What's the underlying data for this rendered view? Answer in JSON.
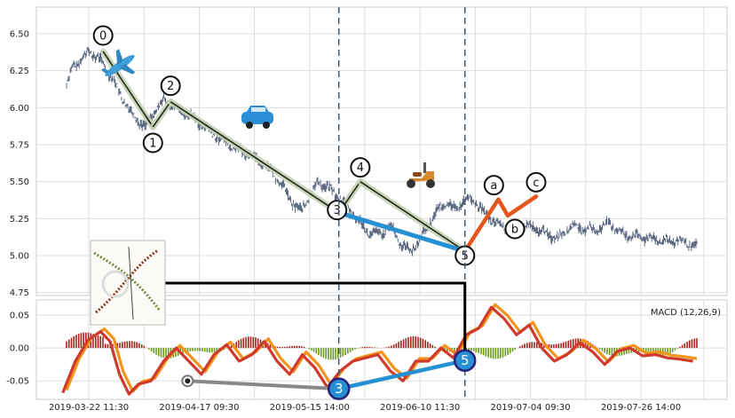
{
  "chart_data": [
    {
      "type": "line",
      "panel": "price",
      "ylim": [
        4.73,
        6.68
      ],
      "x_ticks": [
        "2019-03-22 11:30",
        "2019-04-17 09:30",
        "2019-05-15 14:00",
        "2019-06-10 11:30",
        "2019-07-04 09:30",
        "2019-07-26 14:00"
      ],
      "y_ticks": [
        4.75,
        5.0,
        5.25,
        5.5,
        5.75,
        6.0,
        6.25,
        6.5
      ],
      "y_tick_labels": [
        "4.75",
        "5.00",
        "5.25",
        "5.50",
        "5.75",
        "6.00",
        "6.25",
        "6.50"
      ],
      "grid": true,
      "price_path": [
        [
          0,
          6.15
        ],
        [
          0.01,
          6.28
        ],
        [
          0.02,
          6.31
        ],
        [
          0.035,
          6.38
        ],
        [
          0.05,
          6.34
        ],
        [
          0.07,
          6.22
        ],
        [
          0.09,
          6.05
        ],
        [
          0.105,
          5.95
        ],
        [
          0.125,
          5.87
        ],
        [
          0.14,
          5.98
        ],
        [
          0.155,
          6.05
        ],
        [
          0.17,
          6.0
        ],
        [
          0.19,
          5.96
        ],
        [
          0.21,
          5.9
        ],
        [
          0.23,
          5.83
        ],
        [
          0.25,
          5.77
        ],
        [
          0.27,
          5.72
        ],
        [
          0.29,
          5.68
        ],
        [
          0.31,
          5.63
        ],
        [
          0.33,
          5.55
        ],
        [
          0.345,
          5.45
        ],
        [
          0.36,
          5.35
        ],
        [
          0.372,
          5.3
        ],
        [
          0.385,
          5.4
        ],
        [
          0.4,
          5.5
        ],
        [
          0.415,
          5.46
        ],
        [
          0.44,
          5.36
        ],
        [
          0.46,
          5.25
        ],
        [
          0.48,
          5.15
        ],
        [
          0.5,
          5.15
        ],
        [
          0.515,
          5.2
        ],
        [
          0.53,
          5.08
        ],
        [
          0.545,
          5.03
        ],
        [
          0.56,
          5.1
        ],
        [
          0.575,
          5.22
        ],
        [
          0.59,
          5.31
        ],
        [
          0.6,
          5.36
        ],
        [
          0.615,
          5.31
        ],
        [
          0.63,
          5.37
        ],
        [
          0.645,
          5.38
        ],
        [
          0.66,
          5.3
        ],
        [
          0.68,
          5.22
        ],
        [
          0.7,
          5.18
        ],
        [
          0.72,
          5.2
        ],
        [
          0.74,
          5.19
        ],
        [
          0.76,
          5.15
        ],
        [
          0.78,
          5.12
        ],
        [
          0.8,
          5.2
        ],
        [
          0.82,
          5.18
        ],
        [
          0.84,
          5.17
        ],
        [
          0.86,
          5.22
        ],
        [
          0.88,
          5.15
        ],
        [
          0.9,
          5.13
        ],
        [
          0.92,
          5.12
        ],
        [
          0.94,
          5.1
        ],
        [
          0.97,
          5.1
        ],
        [
          1.0,
          5.06
        ]
      ],
      "impulse_waves": [
        {
          "label": "0",
          "x": 0.058,
          "y": 6.38
        },
        {
          "label": "1",
          "x": 0.137,
          "y": 5.87
        },
        {
          "label": "2",
          "x": 0.165,
          "y": 6.04
        },
        {
          "label": "3",
          "x": 0.432,
          "y": 5.29
        },
        {
          "label": "4",
          "x": 0.466,
          "y": 5.5
        },
        {
          "label": "5",
          "x": 0.632,
          "y": 5.03
        }
      ],
      "corrective_waves": [
        {
          "label": "a",
          "x": 0.685,
          "y": 5.38
        },
        {
          "label": "b",
          "x": 0.7,
          "y": 5.27
        },
        {
          "label": "c",
          "x": 0.745,
          "y": 5.4
        }
      ],
      "vertical_markers_x": [
        0.432,
        0.632
      ]
    },
    {
      "type": "line",
      "panel": "macd",
      "legend": "MACD (12,26,9)",
      "ylim": [
        -0.078,
        0.073
      ],
      "y_ticks": [
        -0.05,
        0.0,
        0.05
      ],
      "y_tick_labels": [
        "-0.05",
        "0.00",
        "0.05"
      ],
      "grid": true,
      "divergence_markers": [
        {
          "label": "3",
          "x": 0.432,
          "y": -0.062
        },
        {
          "label": "5",
          "x": 0.632,
          "y": -0.019
        }
      ],
      "gray_marker": {
        "x": 0.192,
        "y": -0.05
      }
    }
  ]
}
